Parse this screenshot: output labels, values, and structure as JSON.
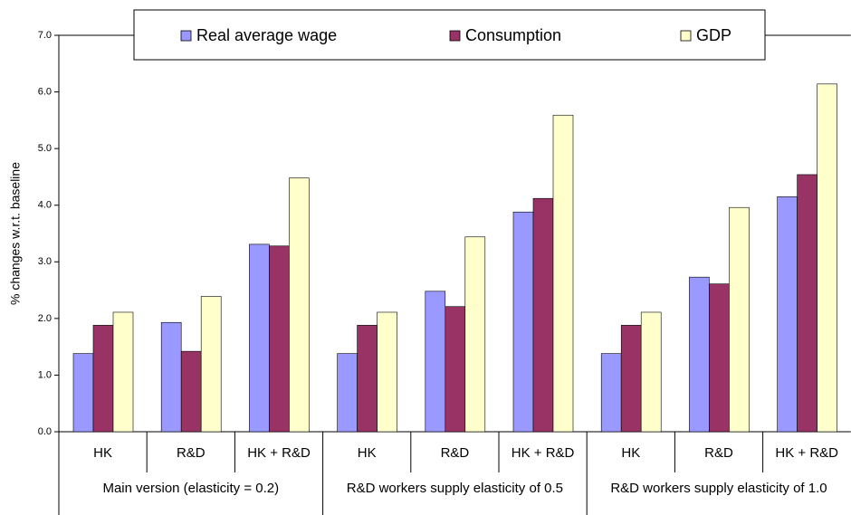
{
  "chart_data": {
    "type": "bar",
    "y_label": "% changes w.r.t. baseline",
    "categories": [
      "HK",
      "R&D",
      "HK + R&D",
      "HK",
      "R&D",
      "HK + R&D",
      "HK",
      "R&D",
      "HK + R&D"
    ],
    "groups": [
      "Main version   (elasticity = 0.2)",
      "R&D workers supply elasticity of 0.5",
      "R&D workers supply elasticity of 1.0"
    ],
    "series": [
      {
        "name": "Real average wage",
        "color": "#9999ff",
        "values": [
          1.38,
          1.93,
          3.31,
          1.38,
          2.48,
          3.88,
          1.38,
          2.73,
          4.15
        ]
      },
      {
        "name": "Consumption",
        "color": "#993366",
        "values": [
          1.88,
          1.42,
          3.28,
          1.88,
          2.21,
          4.12,
          1.88,
          2.61,
          4.54
        ]
      },
      {
        "name": "GDP",
        "color": "#ffffcc",
        "values": [
          2.11,
          2.39,
          4.48,
          2.11,
          3.44,
          5.59,
          2.11,
          3.96,
          6.14
        ]
      }
    ],
    "ylim": [
      0,
      7
    ],
    "yticks": [
      {
        "value": 0,
        "label": "0.0"
      },
      {
        "value": 1,
        "label": "1.0"
      },
      {
        "value": 2,
        "label": "2.0"
      },
      {
        "value": 3,
        "label": "3.0"
      },
      {
        "value": 4,
        "label": "4.0"
      },
      {
        "value": 5,
        "label": "5.0"
      },
      {
        "value": 6,
        "label": "6.0"
      },
      {
        "value": 7,
        "label": "7.0"
      }
    ],
    "legend": "top"
  }
}
